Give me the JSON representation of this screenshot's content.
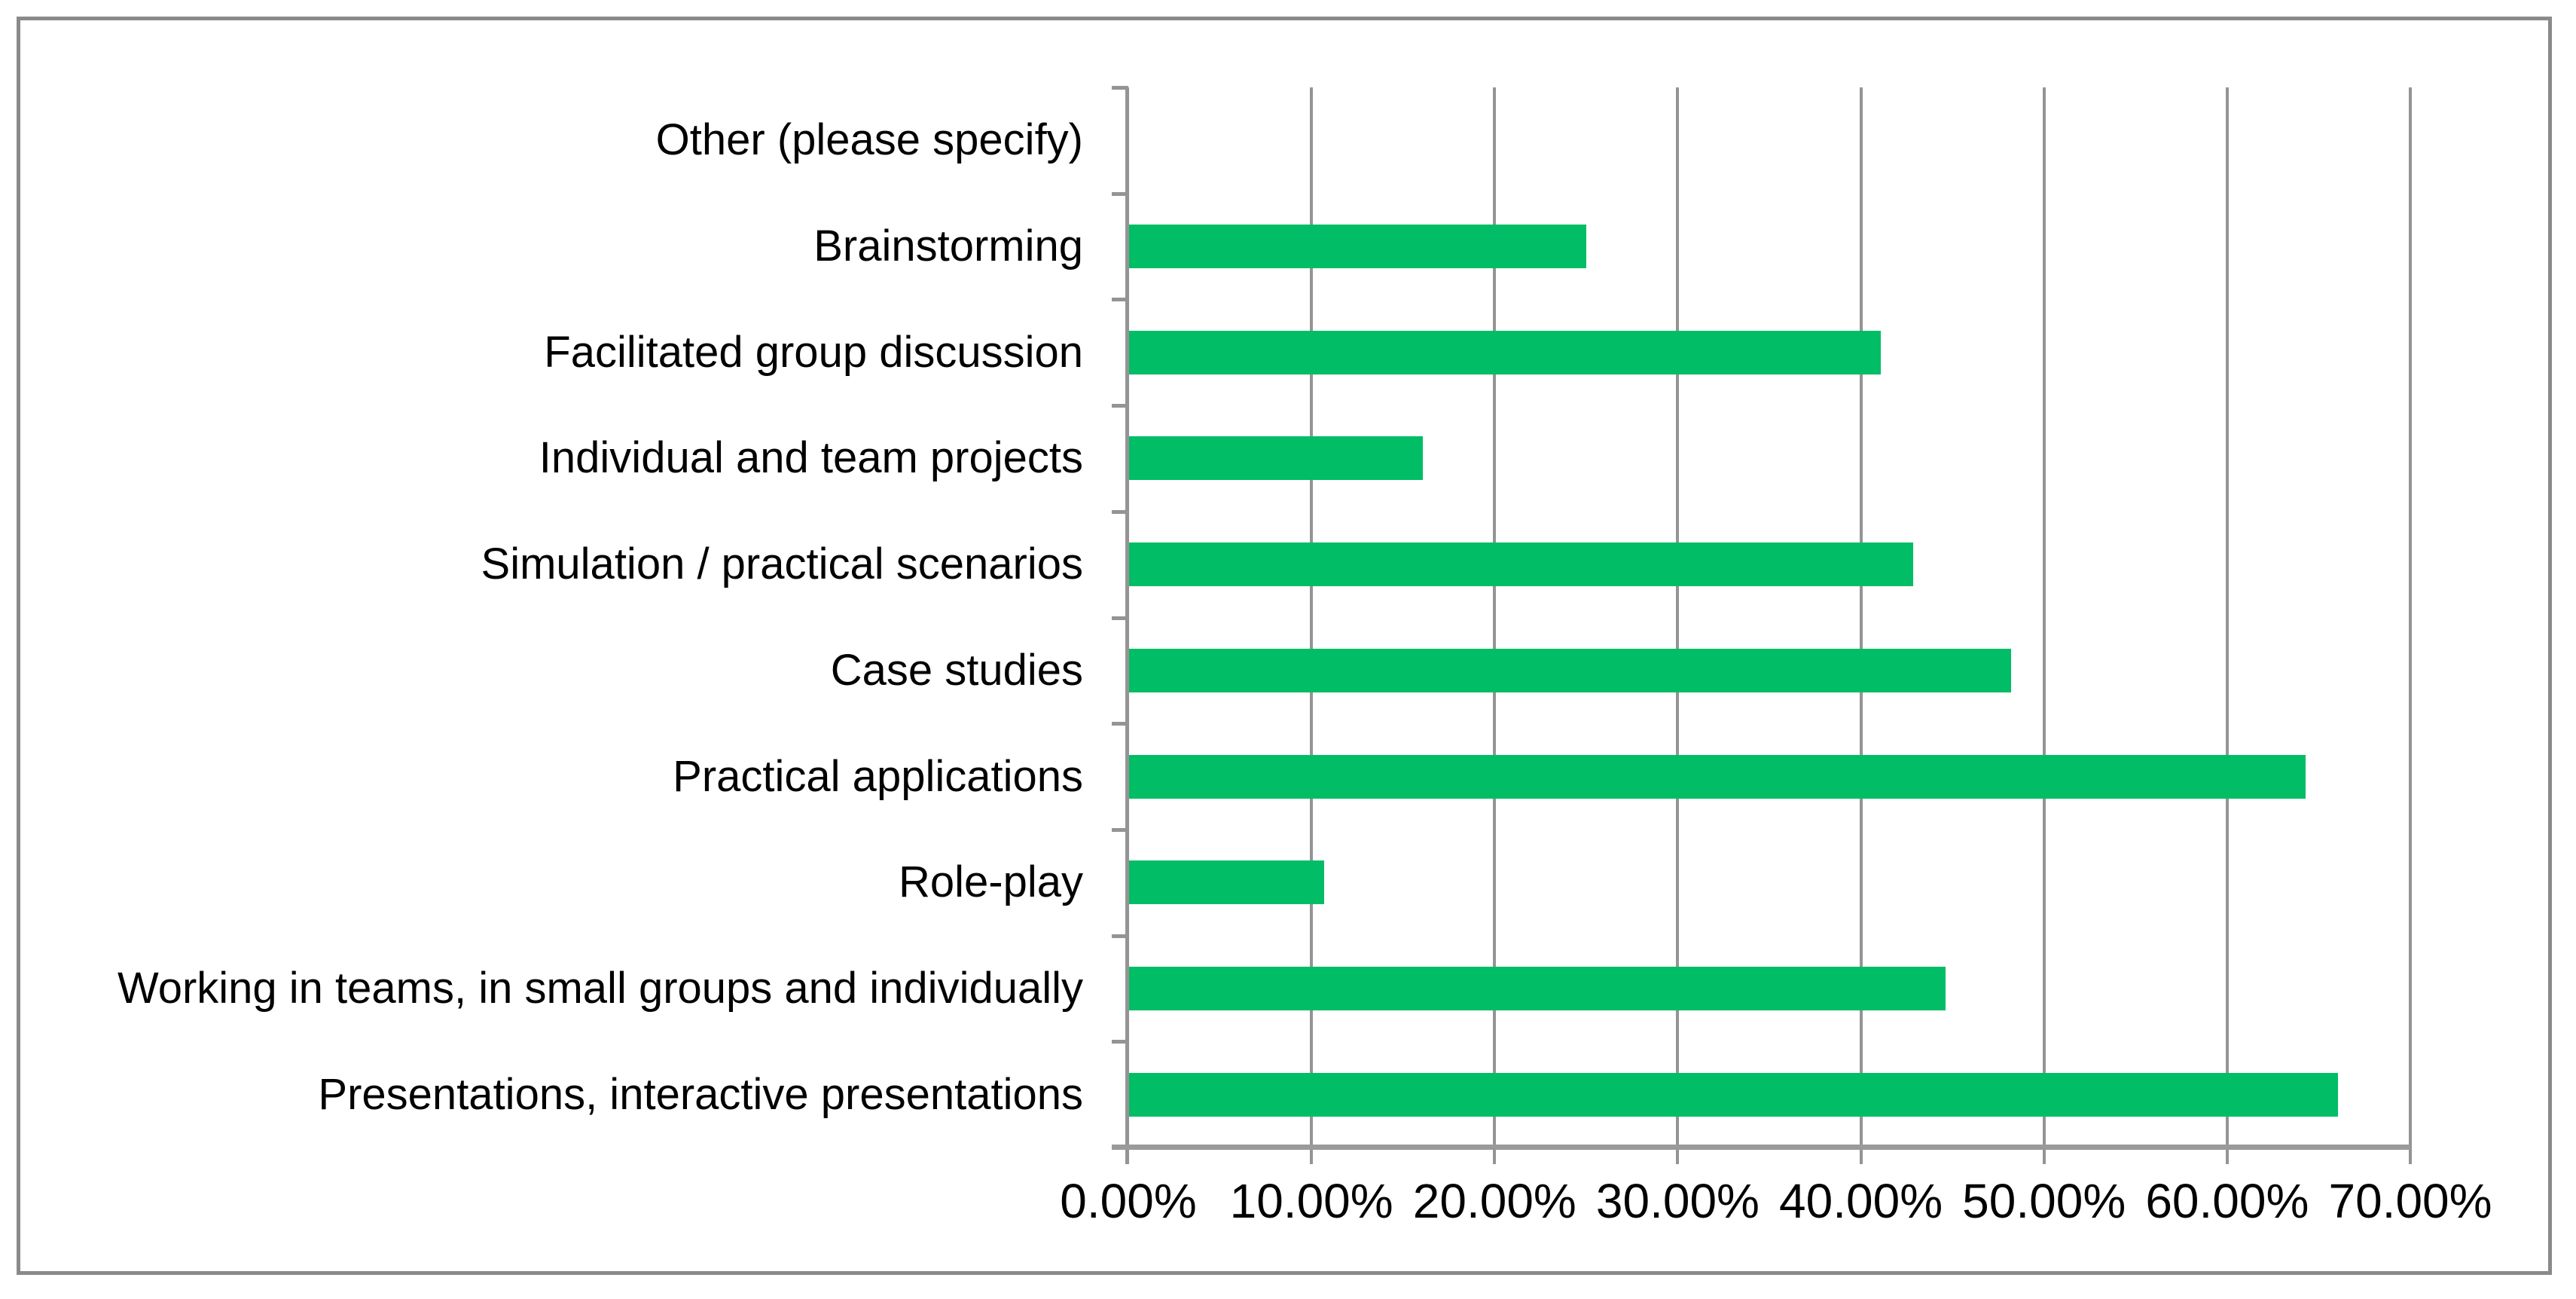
{
  "figure": {
    "background_color": "#ffffff",
    "border_color": "#8a8a8a"
  },
  "chart_data": {
    "type": "bar",
    "orientation": "horizontal",
    "title": "",
    "xlabel": "",
    "ylabel": "",
    "categories": [
      "Other (please specify)",
      "Brainstorming",
      "Facilitated group discussion",
      "Individual and team projects",
      "Simulation / practical scenarios",
      "Case studies",
      "Practical applications",
      "Role-play",
      "Working in teams, in small groups and individually",
      "Presentations, interactive presentations"
    ],
    "values": [
      0,
      25.0,
      41.07,
      16.07,
      42.86,
      48.21,
      64.29,
      10.71,
      44.64,
      66.07
    ],
    "value_unit": "percent",
    "xlim": [
      0,
      70
    ],
    "x_tick_values": [
      0,
      10,
      20,
      30,
      40,
      50,
      60,
      70
    ],
    "x_tick_labels": [
      "0.00%",
      "10.00%",
      "20.00%",
      "30.00%",
      "40.00%",
      "50.00%",
      "60.00%",
      "70.00%"
    ],
    "grid": "vertical-gridlines-on",
    "legend": "none",
    "bar_color": "#00bd66",
    "gridline_color": "#949494",
    "axis_color": "#9a9a9a",
    "text_color": "#000000"
  }
}
